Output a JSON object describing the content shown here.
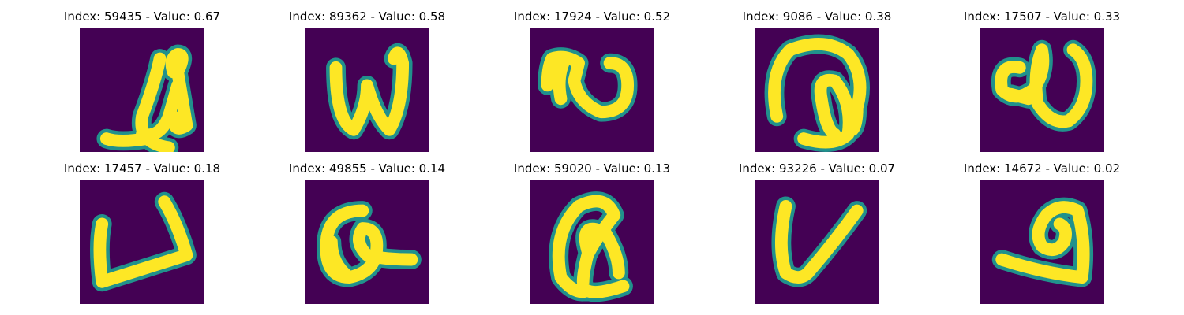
{
  "colors": {
    "background": "#440154",
    "foreground": "#fde725",
    "edge": "#21918c"
  },
  "panels": [
    {
      "title": "Index: 59435 - Value: 0.67",
      "glyph": "handwritten-glyph-loop-hook-icon"
    },
    {
      "title": "Index: 89362 - Value: 0.58",
      "glyph": "handwritten-glyph-w-icon"
    },
    {
      "title": "Index: 17924 - Value: 0.52",
      "glyph": "handwritten-glyph-curl-u-icon"
    },
    {
      "title": "Index: 9086 - Value: 0.38",
      "glyph": "handwritten-glyph-arch-loop-icon"
    },
    {
      "title": "Index: 17507 - Value: 0.33",
      "glyph": "handwritten-glyph-alpha-u-icon"
    },
    {
      "title": "Index: 17457 - Value: 0.18",
      "glyph": "handwritten-glyph-open-box-icon"
    },
    {
      "title": "Index: 49855 - Value: 0.14",
      "glyph": "handwritten-glyph-q-icon"
    },
    {
      "title": "Index: 59020 - Value: 0.13",
      "glyph": "handwritten-glyph-tall-loop-icon"
    },
    {
      "title": "Index: 93226 - Value: 0.07",
      "glyph": "handwritten-glyph-v-icon"
    },
    {
      "title": "Index: 14672 - Value: 0.02",
      "glyph": "handwritten-glyph-spiral-icon"
    }
  ]
}
